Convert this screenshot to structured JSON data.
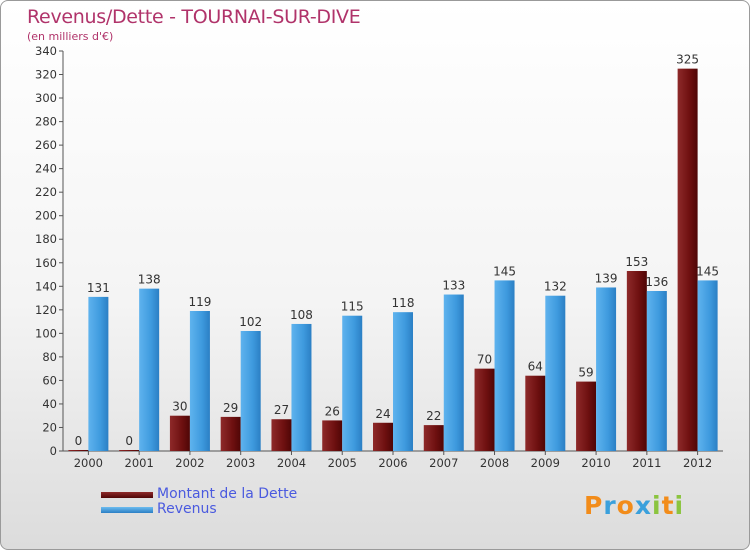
{
  "colors": {
    "debt": "#7b1515",
    "revenue": "#3e9ade",
    "title": "#b0336a",
    "legend_text": "#4a5adf"
  },
  "header": {
    "title": "Revenus/Dette - TOURNAI-SUR-DIVE",
    "subtitle": "(en milliers d'€)"
  },
  "legend": {
    "debt_label": "Montant de la Dette",
    "revenue_label": "Revenus"
  },
  "logo": {
    "text": "Proxiti"
  },
  "chart_data": {
    "type": "bar",
    "title": "Revenus/Dette - TOURNAI-SUR-DIVE",
    "ylabel": "(en milliers d'€)",
    "xlabel": "",
    "ylim": [
      0,
      340
    ],
    "yticks": [
      0,
      20,
      40,
      60,
      80,
      100,
      120,
      140,
      160,
      180,
      200,
      220,
      240,
      260,
      280,
      300,
      320,
      340
    ],
    "grid": false,
    "legend_position": "bottom-left",
    "categories": [
      "2000",
      "2001",
      "2002",
      "2003",
      "2004",
      "2005",
      "2006",
      "2007",
      "2008",
      "2009",
      "2010",
      "2011",
      "2012"
    ],
    "series": [
      {
        "name": "Montant de la Dette",
        "values": [
          0,
          0,
          30,
          29,
          27,
          26,
          24,
          22,
          70,
          64,
          59,
          153,
          325
        ]
      },
      {
        "name": "Revenus",
        "values": [
          131,
          138,
          119,
          102,
          108,
          115,
          118,
          133,
          145,
          132,
          139,
          136,
          145
        ]
      }
    ]
  }
}
